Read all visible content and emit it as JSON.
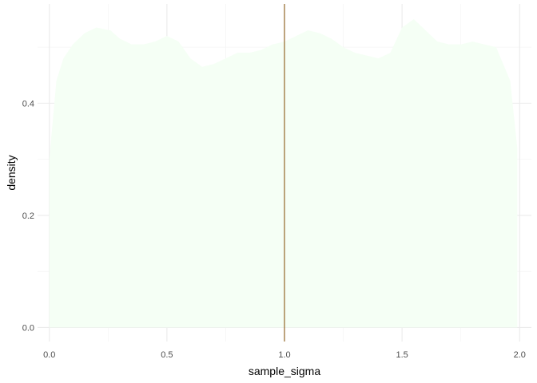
{
  "chart_data": {
    "type": "area",
    "subtype": "density",
    "xlabel": "sample_sigma",
    "ylabel": "density",
    "xlim": [
      -0.05,
      2.05
    ],
    "ylim": [
      -0.025,
      0.577
    ],
    "x_ticks": [
      "0.0",
      "0.5",
      "1.0",
      "1.5",
      "2.0"
    ],
    "y_ticks": [
      "0.0",
      "0.2",
      "0.4"
    ],
    "grid": true,
    "legend": "none",
    "colors": {
      "fill": "#F5FFF5",
      "vline": "#7F4A00",
      "grid_major": "#EBEBEB",
      "grid_minor": "#F2F2F2"
    },
    "series": [
      {
        "x": [
          0.0,
          0.03,
          0.06,
          0.1,
          0.15,
          0.2,
          0.26,
          0.3,
          0.35,
          0.4,
          0.45,
          0.5,
          0.55,
          0.6,
          0.65,
          0.7,
          0.75,
          0.8,
          0.85,
          0.9,
          0.95,
          1.0,
          1.05,
          1.1,
          1.15,
          1.2,
          1.25,
          1.3,
          1.35,
          1.4,
          1.45,
          1.5,
          1.55,
          1.6,
          1.65,
          1.7,
          1.75,
          1.8,
          1.85,
          1.9,
          1.93,
          1.96,
          1.99
        ],
        "values": [
          0.3,
          0.44,
          0.48,
          0.505,
          0.525,
          0.535,
          0.53,
          0.515,
          0.505,
          0.505,
          0.51,
          0.52,
          0.51,
          0.48,
          0.465,
          0.47,
          0.48,
          0.49,
          0.49,
          0.495,
          0.505,
          0.51,
          0.52,
          0.53,
          0.525,
          0.515,
          0.5,
          0.49,
          0.485,
          0.48,
          0.49,
          0.535,
          0.55,
          0.53,
          0.51,
          0.505,
          0.505,
          0.51,
          0.505,
          0.5,
          0.47,
          0.44,
          0.32
        ]
      }
    ],
    "vline": {
      "x": 1.0
    }
  }
}
